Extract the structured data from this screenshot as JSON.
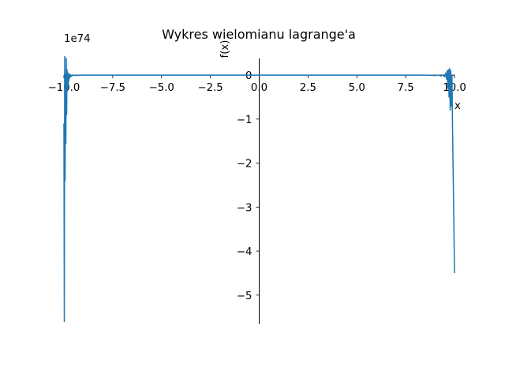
{
  "chart_data": {
    "type": "line",
    "title": "Wykres wielomianu lagrange'a",
    "xlabel": "x",
    "ylabel": "f(x)",
    "y_offset_text": "1e74",
    "xlim": [
      -10.0,
      10.0
    ],
    "ylim": [
      -5.65,
      0.45
    ],
    "spines": "centered",
    "grid": false,
    "x_ticks": [
      -10.0,
      -7.5,
      -5.0,
      -2.5,
      0.0,
      2.5,
      5.0,
      7.5,
      10.0
    ],
    "x_tick_labels": [
      "−10.0",
      "−7.5",
      "−5.0",
      "−2.5",
      "0.0",
      "2.5",
      "5.0",
      "7.5",
      "10.0"
    ],
    "y_ticks": [
      0,
      -1,
      -2,
      -3,
      -4,
      -5
    ],
    "y_tick_labels": [
      "0",
      "−1",
      "−2",
      "−3",
      "−4",
      "−5"
    ],
    "series": [
      {
        "color": "#1f77b4",
        "x": [
          -10.0,
          -9.98,
          -9.96,
          -9.94,
          -9.92,
          -9.9,
          -9.88,
          -9.86,
          -9.84,
          -9.82,
          -9.8,
          -9.78,
          -9.76,
          -9.74,
          -9.72,
          -9.7,
          -9.68,
          -9.66,
          -9.64,
          -9.6,
          -9.5,
          -9.4,
          -9.3,
          -9.2,
          -9.1,
          -9.0,
          -8.5,
          -8.0,
          0.0,
          8.0,
          8.5,
          9.0,
          9.2,
          9.3,
          9.4,
          9.5,
          9.55,
          9.6,
          9.63,
          9.66,
          9.69,
          9.72,
          9.75,
          9.78,
          9.81,
          9.84,
          9.87,
          9.9,
          9.95,
          10.0
        ],
        "y": [
          -1.1,
          -5.6,
          0.42,
          -2.4,
          0.05,
          -1.55,
          0.38,
          -0.9,
          0.12,
          -0.3,
          0.05,
          -0.25,
          0.0,
          -0.12,
          0.03,
          -0.06,
          0.0,
          -0.04,
          0.0,
          -0.02,
          0.0,
          -0.01,
          0.0,
          -0.005,
          0.0,
          0.0,
          0.0,
          0.0,
          0.0,
          0.0,
          0.0,
          -0.01,
          0.0,
          -0.02,
          0.0,
          -0.04,
          0.05,
          -0.1,
          0.1,
          -0.3,
          0.12,
          -0.5,
          0.15,
          -0.8,
          0.1,
          -0.7,
          0.0,
          -1.2,
          -2.8,
          -4.5
        ]
      }
    ]
  }
}
